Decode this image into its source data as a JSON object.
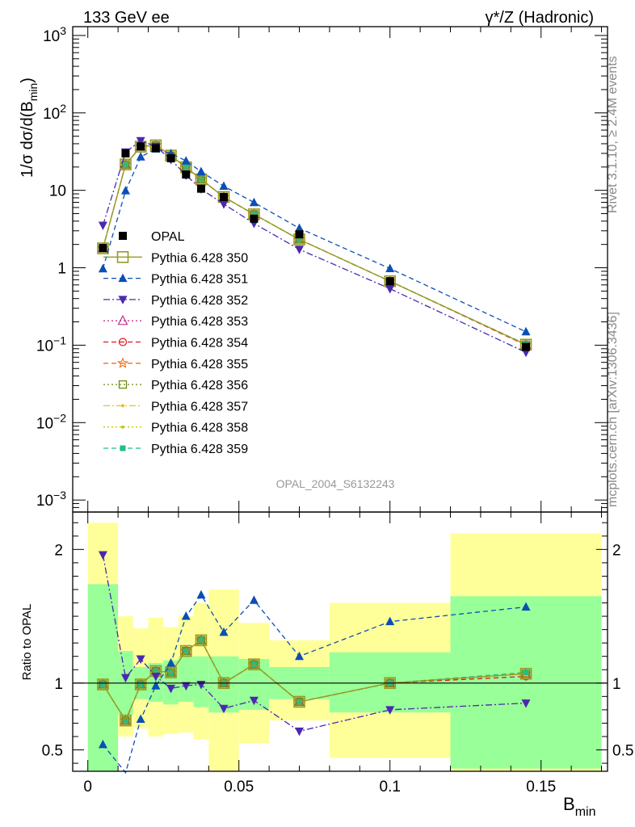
{
  "header": {
    "left": "133 GeV ee",
    "right": "γ*/Z (Hadronic)"
  },
  "side_text": {
    "top": "Rivet 3.1.10, ≥ 2.4M events",
    "bottom": "mcplots.cern.ch [arXiv:1306.3436]"
  },
  "watermark": "OPAL_2004_S6132243",
  "chart_data": [
    {
      "type": "scatter",
      "panel": "main",
      "ylabel": "1/σ dσ/d(B_min)",
      "yscale": "log",
      "ylim": [
        0.0007,
        1300
      ],
      "xlim": [
        -0.005,
        0.172
      ],
      "ytick_labels": [
        {
          "v": 1000,
          "m": "10",
          "e": "3"
        },
        {
          "v": 100,
          "m": "10",
          "e": "2"
        },
        {
          "v": 10,
          "m": "10",
          "e": ""
        },
        {
          "v": 1,
          "m": "1",
          "e": ""
        },
        {
          "v": 0.1,
          "m": "10",
          "e": "−1"
        },
        {
          "v": 0.01,
          "m": "10",
          "e": "−2"
        },
        {
          "v": 0.001,
          "m": "10",
          "e": "−3"
        }
      ],
      "x": [
        0.005,
        0.0125,
        0.0175,
        0.0225,
        0.0275,
        0.0325,
        0.0375,
        0.045,
        0.055,
        0.07,
        0.1,
        0.145
      ],
      "data": {
        "name": "OPAL",
        "values": [
          1.8,
          30,
          37,
          35,
          26,
          16,
          10.5,
          8.2,
          4.3,
          2.7,
          0.67,
          0.095
        ]
      },
      "mc_ratios": {
        "350": [
          0.99,
          0.72,
          0.99,
          1.09,
          1.08,
          1.24,
          1.32,
          1.0,
          1.14,
          0.86,
          1.0,
          1.07
        ],
        "351": [
          0.54,
          0.33,
          0.73,
          0.98,
          1.15,
          1.5,
          1.66,
          1.38,
          1.62,
          1.2,
          1.46,
          1.57
        ],
        "352": [
          1.96,
          1.04,
          1.18,
          1.05,
          0.96,
          0.98,
          0.99,
          0.81,
          0.87,
          0.64,
          0.8,
          0.85
        ]
      },
      "legend": [
        {
          "name": "OPAL",
          "color": "#000000",
          "marker": "square-filled",
          "line": "none"
        },
        {
          "name": "Pythia 6.428 350",
          "color": "#999922",
          "marker": "square-open-large",
          "line": "solid"
        },
        {
          "name": "Pythia 6.428 351",
          "color": "#0b4fb5",
          "marker": "triangle-up-filled",
          "line": "dashed"
        },
        {
          "name": "Pythia 6.428 352",
          "color": "#4b28b0",
          "marker": "triangle-down-filled",
          "line": "dashdot"
        },
        {
          "name": "Pythia 6.428 353",
          "color": "#c4318a",
          "marker": "triangle-up-open",
          "line": "dotted"
        },
        {
          "name": "Pythia 6.428 354",
          "color": "#e0141e",
          "marker": "circle-open",
          "line": "dashed"
        },
        {
          "name": "Pythia 6.428 355",
          "color": "#f07020",
          "marker": "star-open",
          "line": "dashed"
        },
        {
          "name": "Pythia 6.428 356",
          "color": "#6f8a14",
          "marker": "square-open",
          "line": "dotted"
        },
        {
          "name": "Pythia 6.428 357",
          "color": "#e6c21e",
          "marker": "small-dot",
          "line": "dashdot"
        },
        {
          "name": "Pythia 6.428 358",
          "color": "#c8c81e",
          "marker": "small-dot",
          "line": "dotted"
        },
        {
          "name": "Pythia 6.428 359",
          "color": "#1ebf8a",
          "marker": "square-filled-small",
          "line": "dashed"
        }
      ]
    },
    {
      "type": "scatter",
      "panel": "ratio",
      "ylabel": "Ratio to OPAL",
      "xlabel": "B_min",
      "ylim": [
        0.34,
        2.28
      ],
      "xlim": [
        -0.005,
        0.172
      ],
      "yticks": [
        0.5,
        1,
        2
      ],
      "ytick_labels": [
        "0.5",
        "1",
        "2"
      ],
      "xticks": [
        0,
        0.05,
        0.1,
        0.15
      ],
      "xtick_labels": [
        "0",
        "0.05",
        "0.1",
        "0.15"
      ],
      "bins": [
        [
          0,
          0.01
        ],
        [
          0.01,
          0.015
        ],
        [
          0.015,
          0.02
        ],
        [
          0.02,
          0.025
        ],
        [
          0.025,
          0.03
        ],
        [
          0.03,
          0.035
        ],
        [
          0.035,
          0.04
        ],
        [
          0.04,
          0.05
        ],
        [
          0.05,
          0.06
        ],
        [
          0.06,
          0.08
        ],
        [
          0.08,
          0.12
        ],
        [
          0.12,
          0.17
        ]
      ],
      "band_green": [
        [
          0.34,
          1.74
        ],
        [
          0.76,
          1.24
        ],
        [
          0.88,
          1.12
        ],
        [
          0.86,
          1.15
        ],
        [
          0.84,
          1.17
        ],
        [
          0.86,
          1.2
        ],
        [
          0.82,
          1.2
        ],
        [
          0.78,
          1.2
        ],
        [
          0.8,
          1.18
        ],
        [
          0.88,
          1.12
        ],
        [
          0.78,
          1.23
        ],
        [
          0.36,
          1.65
        ]
      ],
      "band_yellow": [
        [
          0.34,
          2.2
        ],
        [
          0.6,
          1.5
        ],
        [
          0.66,
          1.41
        ],
        [
          0.6,
          1.49
        ],
        [
          0.62,
          1.42
        ],
        [
          0.63,
          1.5
        ],
        [
          0.58,
          1.6
        ],
        [
          0.34,
          1.7
        ],
        [
          0.55,
          1.45
        ],
        [
          0.72,
          1.32
        ],
        [
          0.44,
          1.6
        ],
        [
          0.34,
          2.12
        ]
      ],
      "reference_line": 1
    }
  ]
}
